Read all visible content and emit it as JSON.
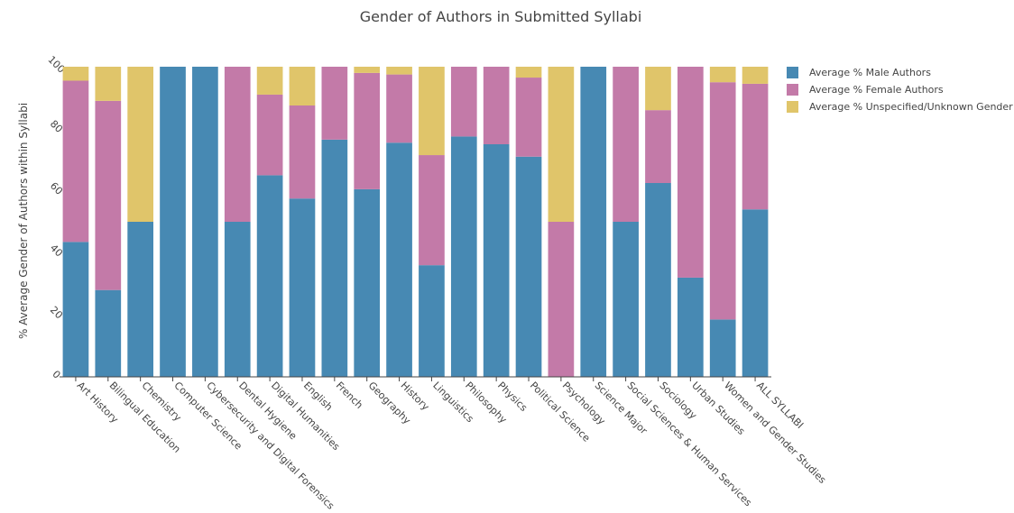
{
  "chart_data": {
    "type": "bar",
    "stacked": true,
    "title": "Gender of Authors in Submitted Syllabi",
    "xlabel": "",
    "ylabel": "% Average Gender of Authors within Syllabi",
    "ylim": [
      0,
      100
    ],
    "yticks": [
      0,
      20,
      40,
      60,
      80,
      100
    ],
    "grid": false,
    "legend_position": "top-right",
    "categories": [
      "Art History",
      "Bilingual Education",
      "Chemistry",
      "Computer Science",
      "Cybersecurity and Digital Forensics",
      "Dental Hygiene",
      "Digital Humanities",
      "English",
      "French",
      "Geography",
      "History",
      "Linguistics",
      "Philosophy",
      "Physics",
      "Political Science",
      "Psychology",
      "Science Major",
      "Social Sciences & Human Services",
      "Sociology",
      "Urban Studies",
      "Women and Gender Studies",
      "ALL SYLLABI"
    ],
    "series": [
      {
        "name": "Average % Male Authors",
        "color": "#4789B3",
        "values": [
          43.5,
          28,
          50,
          100,
          100,
          50,
          65,
          57.5,
          76.5,
          60.5,
          75.5,
          36,
          77.5,
          75,
          71,
          0,
          100,
          50,
          62.5,
          32,
          18.5,
          54
        ]
      },
      {
        "name": "Average % Female Authors",
        "color": "#C37AA8",
        "values": [
          52,
          61,
          0,
          0,
          0,
          50,
          26,
          30,
          23.5,
          37.5,
          22,
          35.5,
          22.5,
          25,
          25.5,
          50,
          0,
          50,
          23.5,
          68,
          76.5,
          40.5
        ]
      },
      {
        "name": "Average % Unspecified/Unknown Gender",
        "color": "#E0C56A",
        "values": [
          4.5,
          11,
          50,
          0,
          0,
          0,
          9,
          12.5,
          0,
          2,
          2.5,
          28.5,
          0,
          0,
          3.5,
          50,
          0,
          0,
          14,
          0,
          5,
          5.5
        ]
      }
    ]
  }
}
